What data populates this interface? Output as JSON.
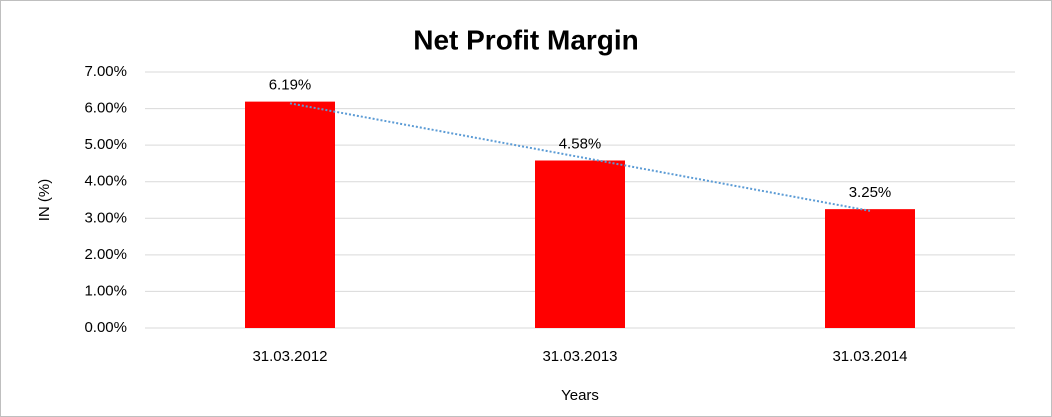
{
  "chart_data": {
    "type": "bar",
    "title": "Net Profit Margin",
    "x_label": "Years",
    "y_label": "IN (%)",
    "categories": [
      "31.03.2012",
      "31.03.2013",
      "31.03.2014"
    ],
    "values": [
      6.19,
      4.58,
      3.25
    ],
    "value_labels": [
      "6.19%",
      "4.58%",
      "3.25%"
    ],
    "color": "#ff0000",
    "ylim": [
      0,
      7
    ],
    "yticks": [
      {
        "value": 0,
        "label": "0.00%"
      },
      {
        "value": 1,
        "label": "1.00%"
      },
      {
        "value": 2,
        "label": "2.00%"
      },
      {
        "value": 3,
        "label": "3.00%"
      },
      {
        "value": 4,
        "label": "4.00%"
      },
      {
        "value": 5,
        "label": "5.00%"
      },
      {
        "value": 6,
        "label": "6.00%"
      },
      {
        "value": 7,
        "label": "7.00%"
      }
    ],
    "grid": true,
    "trendline": "linear",
    "trendline_color": "#5b9bd5"
  }
}
